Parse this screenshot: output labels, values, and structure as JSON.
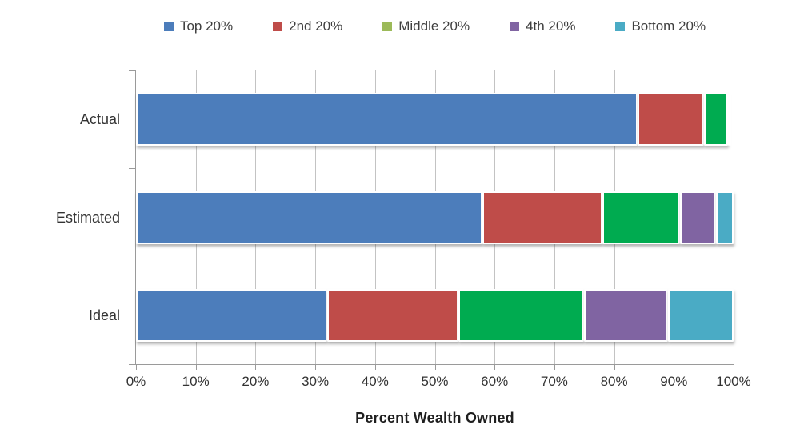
{
  "chart_data": {
    "type": "bar",
    "orientation": "horizontal",
    "stacked": true,
    "title": "",
    "xlabel": "Percent Wealth Owned",
    "ylabel": "",
    "xlim": [
      0,
      100
    ],
    "grid": true,
    "legend_position": "top",
    "categories": [
      "Actual",
      "Estimated",
      "Ideal"
    ],
    "x_ticks": [
      "0%",
      "10%",
      "20%",
      "30%",
      "40%",
      "50%",
      "60%",
      "70%",
      "80%",
      "90%",
      "100%"
    ],
    "x_tick_values": [
      0,
      10,
      20,
      30,
      40,
      50,
      60,
      70,
      80,
      90,
      100
    ],
    "series": [
      {
        "name": "Top 20%",
        "color": "#4c7dbb",
        "legend_color": "#4c7dbb",
        "values": [
          84,
          58,
          32
        ]
      },
      {
        "name": "2nd 20%",
        "color": "#bf4c49",
        "legend_color": "#bf4c49",
        "values": [
          11,
          20,
          22
        ]
      },
      {
        "name": "Middle 20%",
        "color": "#00ab50",
        "legend_color": "#9cba59",
        "values": [
          4,
          13,
          21
        ]
      },
      {
        "name": "4th 20%",
        "color": "#8064a2",
        "legend_color": "#8064a2",
        "values": [
          0.2,
          6,
          14
        ]
      },
      {
        "name": "Bottom 20%",
        "color": "#4aabc5",
        "legend_color": "#4aabc5",
        "values": [
          0.1,
          3,
          11
        ]
      }
    ],
    "colors": {
      "gridline": "#c3c3c3",
      "axis": "#9a9a9a",
      "text": "#333333",
      "background": "#ffffff"
    }
  }
}
